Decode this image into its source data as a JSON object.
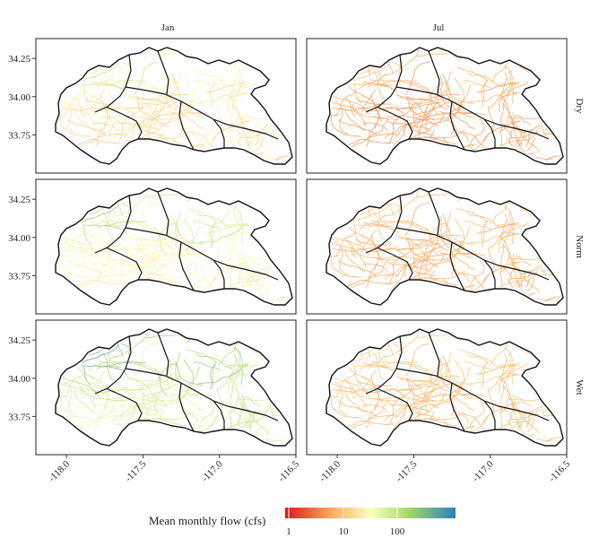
{
  "columns": [
    "Jan",
    "Jul"
  ],
  "rows": [
    "Dry",
    "Norm",
    "Wet"
  ],
  "y_axis": {
    "ticks": [
      "34.25",
      "34.00",
      "33.75"
    ],
    "values": [
      34.25,
      34.0,
      33.75
    ]
  },
  "x_axis": {
    "ticks": [
      "-118.0",
      "-117.5",
      "-117.0",
      "-116.5"
    ],
    "values": [
      -118.0,
      -117.5,
      -117.0,
      -116.5
    ]
  },
  "legend": {
    "title": "Mean monthly flow (cfs)",
    "ticks": [
      "1",
      "10",
      "100"
    ],
    "scale": "log10",
    "colors": [
      "#d7191c",
      "#fdae61",
      "#ffffbf",
      "#a6d96a",
      "#2b83ba"
    ]
  },
  "chart_data": {
    "type": "heatmap",
    "description_type": "faceted_stream_network_map",
    "facets_x": [
      "Jan",
      "Jul"
    ],
    "facets_y": [
      "Dry",
      "Norm",
      "Wet"
    ],
    "xlim": [
      -118.2,
      -116.5
    ],
    "ylim": [
      33.5,
      34.38
    ],
    "color_scale": "log10",
    "typical_flow": {
      "Jan": {
        "Dry": 12,
        "Norm": 25,
        "Wet": 60
      },
      "Jul": {
        "Dry": 4,
        "Norm": 5,
        "Wet": 6
      }
    },
    "grid": false
  }
}
